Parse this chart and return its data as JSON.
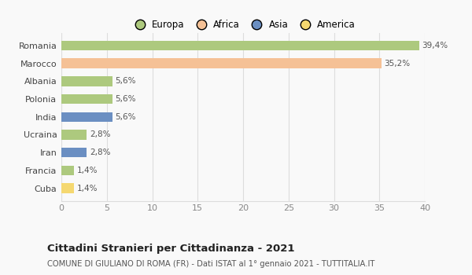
{
  "categories": [
    "Romania",
    "Marocco",
    "Albania",
    "Polonia",
    "India",
    "Ucraina",
    "Iran",
    "Francia",
    "Cuba"
  ],
  "values": [
    39.4,
    35.2,
    5.6,
    5.6,
    5.6,
    2.8,
    2.8,
    1.4,
    1.4
  ],
  "labels": [
    "39,4%",
    "35,2%",
    "5,6%",
    "5,6%",
    "5,6%",
    "2,8%",
    "2,8%",
    "1,4%",
    "1,4%"
  ],
  "colors": [
    "#adc97e",
    "#f5c196",
    "#adc97e",
    "#adc97e",
    "#6b8fc2",
    "#adc97e",
    "#6b8fc2",
    "#adc97e",
    "#f5d870"
  ],
  "legend_labels": [
    "Europa",
    "Africa",
    "Asia",
    "America"
  ],
  "legend_colors": [
    "#adc97e",
    "#f5c196",
    "#6b8fc2",
    "#f5d870"
  ],
  "title": "Cittadini Stranieri per Cittadinanza - 2021",
  "subtitle": "COMUNE DI GIULIANO DI ROMA (FR) - Dati ISTAT al 1° gennaio 2021 - TUTTITALIA.IT",
  "xlim": [
    0,
    40
  ],
  "xticks": [
    0,
    5,
    10,
    15,
    20,
    25,
    30,
    35,
    40
  ],
  "bg_color": "#f9f9f9",
  "grid_color": "#dddddd"
}
